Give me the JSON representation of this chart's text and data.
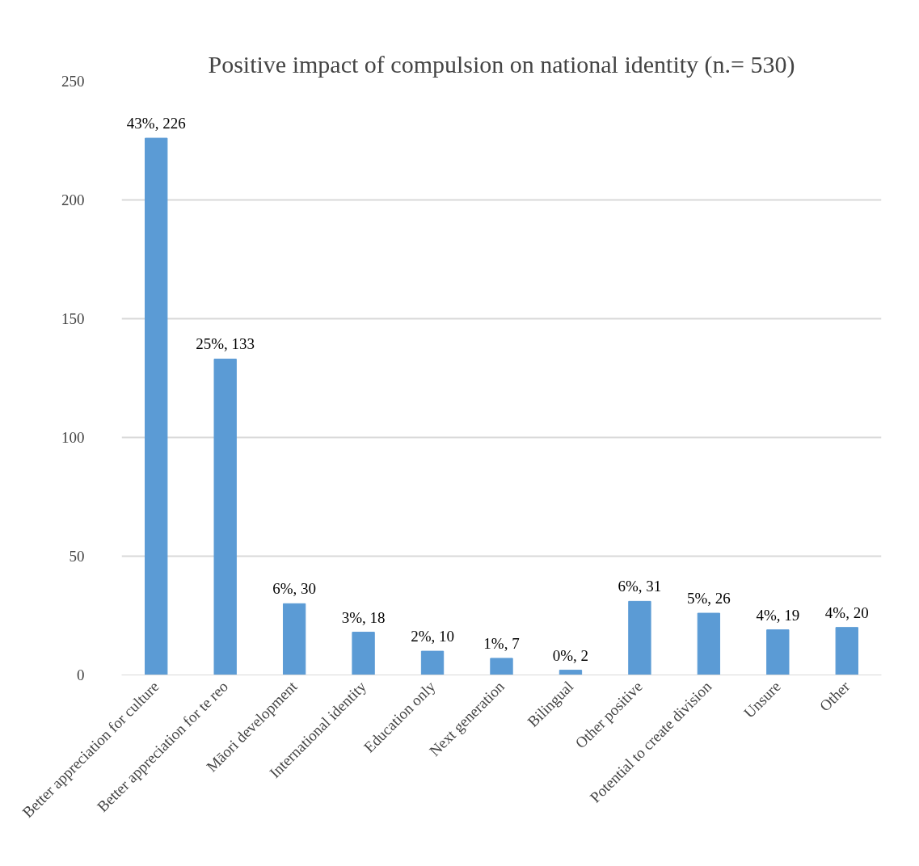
{
  "chart_data": {
    "type": "bar",
    "title": "Positive impact of compulsion on national identity (n.= 530)",
    "categories": [
      "Better appreciation for culture",
      "Better appreciation for te reo",
      "Māori development",
      "International identity",
      "Education only",
      "Next generation",
      "Bilingual",
      "Other positive",
      "Potential to create division",
      "Unsure",
      "Other"
    ],
    "values": [
      226,
      133,
      30,
      18,
      10,
      7,
      2,
      31,
      26,
      19,
      20
    ],
    "value_labels": [
      "43%, 226",
      "25%, 133",
      "6%, 30",
      "3%, 18",
      "2%, 10",
      "1%, 7",
      "0%, 2",
      "6%, 31",
      "5%, 26",
      "4%, 19",
      "4%, 20"
    ],
    "color": "#5b9bd5",
    "ylim": [
      0,
      250
    ],
    "yticks": [
      0,
      50,
      100,
      150,
      200,
      250
    ],
    "grid": "y"
  }
}
